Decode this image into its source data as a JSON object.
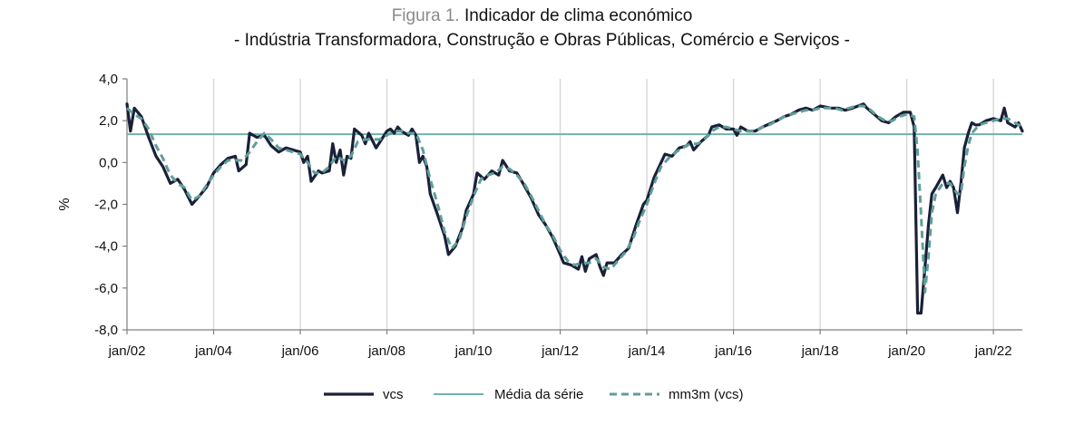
{
  "figure": {
    "label": "Figura 1.",
    "title": "Indicador de clima económico",
    "subtitle": "- Indústria Transformadora, Construção e Obras Públicas, Comércio e Serviços -"
  },
  "colors": {
    "vcs": "#1a2038",
    "media": "#6fb2ac",
    "mm3m": "#5f9e9a",
    "grid": "#d9d9d9",
    "axis": "#7f7f7f"
  },
  "chart_data": {
    "type": "line",
    "ylabel": "%",
    "xlabel": "",
    "ylim": [
      -8,
      4
    ],
    "yticks": [
      4,
      2,
      0,
      -2,
      -4,
      -6,
      -8
    ],
    "ytick_labels": [
      "4,0",
      "2,0",
      "0,0",
      "-2,0",
      "-4,0",
      "-6,0",
      "-8,0"
    ],
    "xlim": [
      2002.0,
      2022.667
    ],
    "xticks": [
      2002,
      2004,
      2006,
      2008,
      2010,
      2012,
      2014,
      2016,
      2018,
      2020,
      2022
    ],
    "xtick_labels": [
      "jan/02",
      "jan/04",
      "jan/06",
      "jan/08",
      "jan/10",
      "jan/12",
      "jan/14",
      "jan/16",
      "jan/18",
      "jan/20",
      "jan/22"
    ],
    "grid_x": true,
    "legend_position": "bottom",
    "reference_line": {
      "name": "Média da série",
      "value": 1.35
    },
    "series": [
      {
        "name": "vcs",
        "style": "solid",
        "points": [
          [
            2002.0,
            2.8
          ],
          [
            2002.08,
            1.5
          ],
          [
            2002.17,
            2.6
          ],
          [
            2002.33,
            2.2
          ],
          [
            2002.5,
            1.2
          ],
          [
            2002.67,
            0.3
          ],
          [
            2002.83,
            -0.2
          ],
          [
            2003.0,
            -1.0
          ],
          [
            2003.17,
            -0.8
          ],
          [
            2003.33,
            -1.3
          ],
          [
            2003.5,
            -2.0
          ],
          [
            2003.67,
            -1.6
          ],
          [
            2003.83,
            -1.2
          ],
          [
            2004.0,
            -0.5
          ],
          [
            2004.17,
            -0.1
          ],
          [
            2004.33,
            0.2
          ],
          [
            2004.5,
            0.3
          ],
          [
            2004.58,
            -0.4
          ],
          [
            2004.75,
            -0.1
          ],
          [
            2004.83,
            1.4
          ],
          [
            2005.0,
            1.2
          ],
          [
            2005.17,
            1.3
          ],
          [
            2005.33,
            0.8
          ],
          [
            2005.5,
            0.5
          ],
          [
            2005.67,
            0.7
          ],
          [
            2006.0,
            0.5
          ],
          [
            2006.08,
            0.0
          ],
          [
            2006.17,
            0.3
          ],
          [
            2006.25,
            -0.9
          ],
          [
            2006.42,
            -0.4
          ],
          [
            2006.5,
            -0.5
          ],
          [
            2006.67,
            -0.4
          ],
          [
            2006.75,
            0.9
          ],
          [
            2006.83,
            0.0
          ],
          [
            2006.92,
            0.6
          ],
          [
            2007.0,
            -0.6
          ],
          [
            2007.08,
            0.3
          ],
          [
            2007.17,
            0.2
          ],
          [
            2007.25,
            1.6
          ],
          [
            2007.42,
            1.3
          ],
          [
            2007.5,
            0.9
          ],
          [
            2007.58,
            1.4
          ],
          [
            2007.75,
            0.7
          ],
          [
            2008.0,
            1.5
          ],
          [
            2008.08,
            1.6
          ],
          [
            2008.17,
            1.4
          ],
          [
            2008.25,
            1.7
          ],
          [
            2008.33,
            1.5
          ],
          [
            2008.5,
            1.3
          ],
          [
            2008.58,
            1.6
          ],
          [
            2008.67,
            1.3
          ],
          [
            2008.75,
            0.0
          ],
          [
            2008.83,
            0.3
          ],
          [
            2008.92,
            -0.2
          ],
          [
            2009.0,
            -1.5
          ],
          [
            2009.17,
            -2.5
          ],
          [
            2009.33,
            -3.5
          ],
          [
            2009.42,
            -4.4
          ],
          [
            2009.58,
            -4.0
          ],
          [
            2009.75,
            -3.1
          ],
          [
            2009.83,
            -2.3
          ],
          [
            2010.0,
            -1.5
          ],
          [
            2010.08,
            -0.5
          ],
          [
            2010.25,
            -0.8
          ],
          [
            2010.42,
            -0.4
          ],
          [
            2010.58,
            -0.6
          ],
          [
            2010.67,
            0.1
          ],
          [
            2010.83,
            -0.4
          ],
          [
            2011.0,
            -0.5
          ],
          [
            2011.17,
            -1.1
          ],
          [
            2011.33,
            -1.7
          ],
          [
            2011.5,
            -2.5
          ],
          [
            2011.67,
            -3.0
          ],
          [
            2011.83,
            -3.6
          ],
          [
            2012.0,
            -4.4
          ],
          [
            2012.08,
            -4.8
          ],
          [
            2012.25,
            -4.9
          ],
          [
            2012.42,
            -5.1
          ],
          [
            2012.5,
            -4.5
          ],
          [
            2012.58,
            -5.2
          ],
          [
            2012.67,
            -4.6
          ],
          [
            2012.83,
            -4.4
          ],
          [
            2012.92,
            -5.0
          ],
          [
            2013.0,
            -5.4
          ],
          [
            2013.08,
            -4.8
          ],
          [
            2013.25,
            -4.8
          ],
          [
            2013.42,
            -4.4
          ],
          [
            2013.58,
            -4.1
          ],
          [
            2013.75,
            -3.0
          ],
          [
            2013.92,
            -2.0
          ],
          [
            2014.0,
            -1.8
          ],
          [
            2014.17,
            -0.7
          ],
          [
            2014.33,
            0.0
          ],
          [
            2014.42,
            0.4
          ],
          [
            2014.58,
            0.3
          ],
          [
            2014.75,
            0.7
          ],
          [
            2014.92,
            0.8
          ],
          [
            2015.0,
            1.0
          ],
          [
            2015.08,
            0.6
          ],
          [
            2015.25,
            1.0
          ],
          [
            2015.42,
            1.3
          ],
          [
            2015.5,
            1.7
          ],
          [
            2015.67,
            1.8
          ],
          [
            2015.83,
            1.6
          ],
          [
            2016.0,
            1.6
          ],
          [
            2016.08,
            1.3
          ],
          [
            2016.17,
            1.7
          ],
          [
            2016.33,
            1.5
          ],
          [
            2016.5,
            1.5
          ],
          [
            2016.67,
            1.7
          ],
          [
            2017.0,
            2.0
          ],
          [
            2017.17,
            2.2
          ],
          [
            2017.33,
            2.3
          ],
          [
            2017.5,
            2.5
          ],
          [
            2017.67,
            2.6
          ],
          [
            2017.83,
            2.5
          ],
          [
            2018.0,
            2.7
          ],
          [
            2018.25,
            2.6
          ],
          [
            2018.42,
            2.6
          ],
          [
            2018.58,
            2.5
          ],
          [
            2018.75,
            2.6
          ],
          [
            2019.0,
            2.8
          ],
          [
            2019.08,
            2.6
          ],
          [
            2019.25,
            2.3
          ],
          [
            2019.42,
            2.0
          ],
          [
            2019.58,
            1.9
          ],
          [
            2019.75,
            2.2
          ],
          [
            2019.92,
            2.4
          ],
          [
            2020.08,
            2.4
          ],
          [
            2020.17,
            1.7
          ],
          [
            2020.25,
            -7.2
          ],
          [
            2020.33,
            -7.2
          ],
          [
            2020.42,
            -5.0
          ],
          [
            2020.5,
            -3.0
          ],
          [
            2020.58,
            -1.5
          ],
          [
            2020.67,
            -1.2
          ],
          [
            2020.83,
            -0.6
          ],
          [
            2020.92,
            -1.2
          ],
          [
            2021.0,
            -0.9
          ],
          [
            2021.08,
            -1.2
          ],
          [
            2021.17,
            -2.4
          ],
          [
            2021.25,
            -1.0
          ],
          [
            2021.33,
            0.7
          ],
          [
            2021.42,
            1.4
          ],
          [
            2021.5,
            1.9
          ],
          [
            2021.58,
            1.8
          ],
          [
            2021.67,
            1.8
          ],
          [
            2021.83,
            2.0
          ],
          [
            2022.0,
            2.1
          ],
          [
            2022.17,
            2.0
          ],
          [
            2022.25,
            2.6
          ],
          [
            2022.33,
            1.9
          ],
          [
            2022.5,
            1.7
          ],
          [
            2022.58,
            1.9
          ],
          [
            2022.667,
            1.5
          ]
        ]
      },
      {
        "name": "mm3m (vcs)",
        "style": "dashed",
        "points": [
          [
            2002.0,
            2.6
          ],
          [
            2002.17,
            2.3
          ],
          [
            2002.33,
            2.1
          ],
          [
            2002.5,
            1.6
          ],
          [
            2002.67,
            0.8
          ],
          [
            2002.83,
            0.2
          ],
          [
            2003.0,
            -0.6
          ],
          [
            2003.17,
            -1.0
          ],
          [
            2003.33,
            -1.2
          ],
          [
            2003.5,
            -1.8
          ],
          [
            2003.67,
            -1.6
          ],
          [
            2003.83,
            -1.1
          ],
          [
            2004.0,
            -0.6
          ],
          [
            2004.17,
            -0.2
          ],
          [
            2004.33,
            0.1
          ],
          [
            2004.5,
            0.1
          ],
          [
            2004.67,
            0.1
          ],
          [
            2004.83,
            0.5
          ],
          [
            2005.0,
            1.0
          ],
          [
            2005.17,
            1.4
          ],
          [
            2005.33,
            1.1
          ],
          [
            2005.5,
            0.7
          ],
          [
            2005.67,
            0.6
          ],
          [
            2006.0,
            0.4
          ],
          [
            2006.17,
            0.0
          ],
          [
            2006.33,
            -0.5
          ],
          [
            2006.5,
            -0.5
          ],
          [
            2006.67,
            -0.2
          ],
          [
            2006.83,
            0.3
          ],
          [
            2007.0,
            0.1
          ],
          [
            2007.17,
            0.3
          ],
          [
            2007.33,
            1.0
          ],
          [
            2007.5,
            1.1
          ],
          [
            2007.67,
            1.1
          ],
          [
            2007.83,
            1.1
          ],
          [
            2008.0,
            1.3
          ],
          [
            2008.17,
            1.5
          ],
          [
            2008.33,
            1.5
          ],
          [
            2008.5,
            1.4
          ],
          [
            2008.67,
            1.4
          ],
          [
            2008.83,
            0.6
          ],
          [
            2009.0,
            -0.8
          ],
          [
            2009.17,
            -2.0
          ],
          [
            2009.33,
            -3.3
          ],
          [
            2009.5,
            -4.1
          ],
          [
            2009.67,
            -3.7
          ],
          [
            2009.83,
            -2.6
          ],
          [
            2010.0,
            -1.6
          ],
          [
            2010.17,
            -0.8
          ],
          [
            2010.33,
            -0.6
          ],
          [
            2010.5,
            -0.5
          ],
          [
            2010.67,
            -0.2
          ],
          [
            2010.83,
            -0.3
          ],
          [
            2011.0,
            -0.6
          ],
          [
            2011.17,
            -1.0
          ],
          [
            2011.33,
            -1.6
          ],
          [
            2011.5,
            -2.3
          ],
          [
            2011.67,
            -3.0
          ],
          [
            2011.83,
            -3.5
          ],
          [
            2012.0,
            -4.2
          ],
          [
            2012.17,
            -4.7
          ],
          [
            2012.33,
            -4.9
          ],
          [
            2012.5,
            -4.8
          ],
          [
            2012.67,
            -4.8
          ],
          [
            2012.83,
            -4.6
          ],
          [
            2013.0,
            -5.0
          ],
          [
            2013.17,
            -5.1
          ],
          [
            2013.33,
            -4.7
          ],
          [
            2013.5,
            -4.3
          ],
          [
            2013.67,
            -3.7
          ],
          [
            2013.83,
            -2.8
          ],
          [
            2014.0,
            -2.0
          ],
          [
            2014.17,
            -1.0
          ],
          [
            2014.33,
            -0.2
          ],
          [
            2014.5,
            0.2
          ],
          [
            2014.67,
            0.5
          ],
          [
            2014.83,
            0.7
          ],
          [
            2015.0,
            0.9
          ],
          [
            2015.17,
            0.9
          ],
          [
            2015.33,
            1.1
          ],
          [
            2015.5,
            1.5
          ],
          [
            2015.67,
            1.7
          ],
          [
            2015.83,
            1.7
          ],
          [
            2016.0,
            1.6
          ],
          [
            2016.17,
            1.5
          ],
          [
            2016.33,
            1.5
          ],
          [
            2016.5,
            1.5
          ],
          [
            2016.67,
            1.7
          ],
          [
            2016.83,
            1.8
          ],
          [
            2017.0,
            2.0
          ],
          [
            2017.17,
            2.2
          ],
          [
            2017.33,
            2.3
          ],
          [
            2017.5,
            2.4
          ],
          [
            2017.67,
            2.5
          ],
          [
            2017.83,
            2.5
          ],
          [
            2018.0,
            2.6
          ],
          [
            2018.17,
            2.6
          ],
          [
            2018.33,
            2.6
          ],
          [
            2018.5,
            2.5
          ],
          [
            2018.67,
            2.6
          ],
          [
            2018.83,
            2.7
          ],
          [
            2019.0,
            2.7
          ],
          [
            2019.17,
            2.5
          ],
          [
            2019.33,
            2.2
          ],
          [
            2019.5,
            2.0
          ],
          [
            2019.67,
            2.0
          ],
          [
            2019.83,
            2.2
          ],
          [
            2020.0,
            2.3
          ],
          [
            2020.17,
            2.2
          ],
          [
            2020.25,
            0.5
          ],
          [
            2020.33,
            -2.5
          ],
          [
            2020.42,
            -6.2
          ],
          [
            2020.5,
            -4.5
          ],
          [
            2020.58,
            -2.4
          ],
          [
            2020.67,
            -1.5
          ],
          [
            2020.83,
            -1.0
          ],
          [
            2021.0,
            -1.0
          ],
          [
            2021.17,
            -1.5
          ],
          [
            2021.25,
            -1.5
          ],
          [
            2021.33,
            -0.2
          ],
          [
            2021.42,
            0.8
          ],
          [
            2021.5,
            1.4
          ],
          [
            2021.67,
            1.8
          ],
          [
            2021.83,
            1.9
          ],
          [
            2022.0,
            2.0
          ],
          [
            2022.17,
            2.1
          ],
          [
            2022.33,
            2.1
          ],
          [
            2022.5,
            1.9
          ],
          [
            2022.667,
            1.7
          ]
        ]
      }
    ],
    "legend": [
      {
        "name": "vcs",
        "style": "solid"
      },
      {
        "name": "Média da série",
        "style": "solid"
      },
      {
        "name": "mm3m (vcs)",
        "style": "dashed"
      }
    ]
  }
}
